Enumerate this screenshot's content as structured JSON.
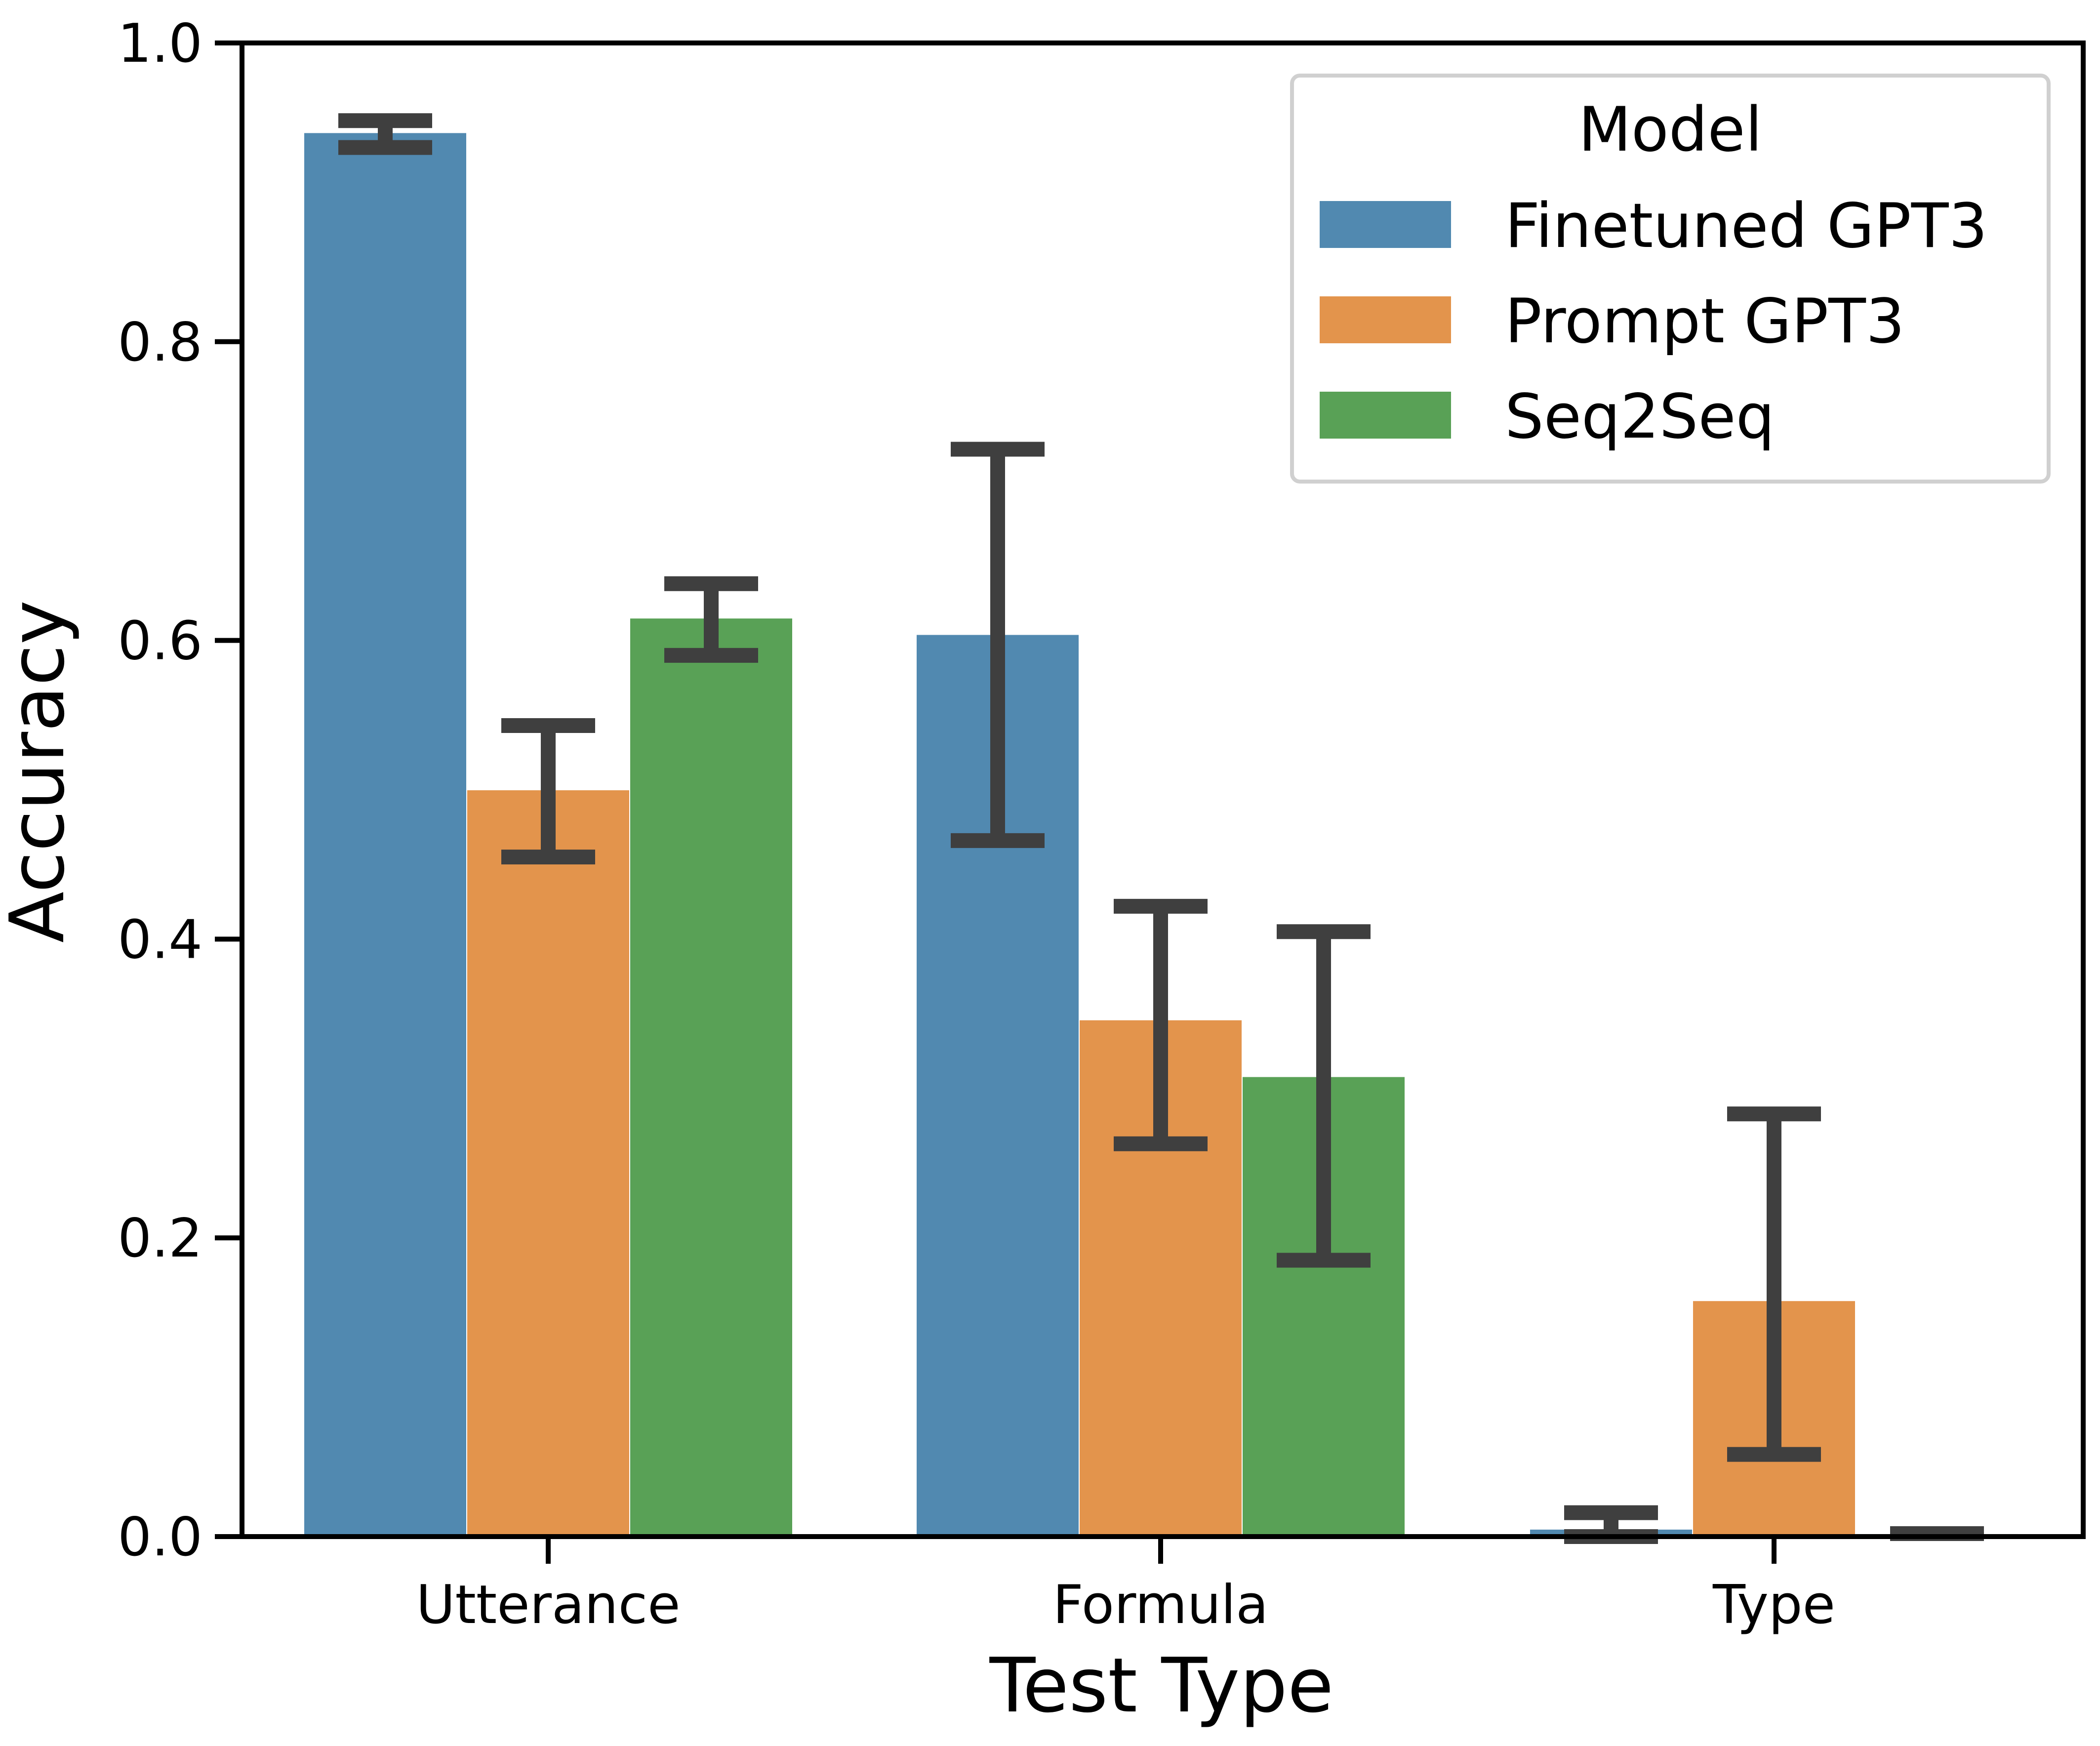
{
  "chart_data": {
    "type": "bar",
    "xlabel": "Test Type",
    "ylabel": "Accuracy",
    "ylim": [
      0,
      1.0
    ],
    "yticks": [
      "0.0",
      "0.2",
      "0.4",
      "0.6",
      "0.8",
      "1.0"
    ],
    "categories": [
      "Utterance",
      "Formula",
      "Type"
    ],
    "legend": {
      "title": "Model",
      "placement": "top-right"
    },
    "series": [
      {
        "name": "Finetuned GPT3",
        "color": "#5189b0",
        "values": [
          0.94,
          0.604,
          0.005
        ],
        "err_low": [
          0.93,
          0.466,
          0.0
        ],
        "err_high": [
          0.948,
          0.728,
          0.016
        ]
      },
      {
        "name": "Prompt GPT3",
        "color": "#e3944c",
        "values": [
          0.5,
          0.346,
          0.158
        ],
        "err_low": [
          0.455,
          0.263,
          0.055
        ],
        "err_high": [
          0.543,
          0.422,
          0.283
        ]
      },
      {
        "name": "Seq2Seq",
        "color": "#59a156",
        "values": [
          0.615,
          0.308,
          0.002
        ],
        "err_low": [
          0.59,
          0.185,
          0.002
        ],
        "err_high": [
          0.638,
          0.405,
          0.002
        ]
      }
    ]
  }
}
